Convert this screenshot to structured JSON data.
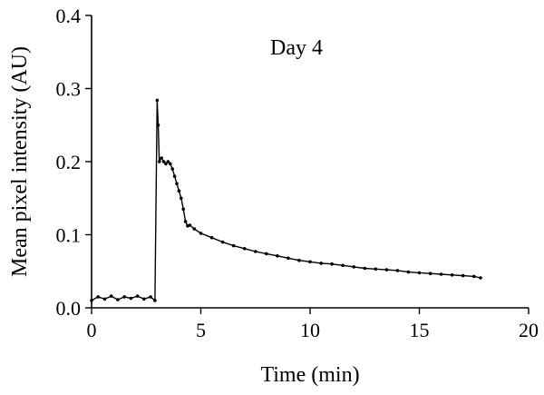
{
  "chart_data": {
    "type": "line",
    "title": "",
    "annotation": "Day 4",
    "xlabel": "Time (min)",
    "ylabel": "Mean pixel intensity (AU)",
    "xlim": [
      0,
      20
    ],
    "ylim": [
      0,
      0.4
    ],
    "x_ticks": [
      0,
      5,
      10,
      15,
      20
    ],
    "x_tick_labels": [
      "0",
      "5",
      "10",
      "15",
      "20"
    ],
    "y_ticks": [
      0.0,
      0.1,
      0.2,
      0.3,
      0.4
    ],
    "y_tick_labels": [
      "0.0",
      "0.1",
      "0.2",
      "0.3",
      "0.4"
    ],
    "grid": false,
    "series": [
      {
        "x": [
          0.0,
          0.3,
          0.6,
          0.9,
          1.2,
          1.5,
          1.8,
          2.1,
          2.4,
          2.7,
          2.9,
          3.0,
          3.05,
          3.1,
          3.2,
          3.3,
          3.4,
          3.5,
          3.6,
          3.7,
          3.8,
          3.9,
          4.0,
          4.1,
          4.2,
          4.3,
          4.4,
          4.5,
          4.7,
          5.0,
          5.5,
          6.0,
          6.5,
          7.0,
          7.5,
          8.0,
          8.5,
          9.0,
          9.5,
          10.0,
          10.5,
          11.0,
          11.5,
          12.0,
          12.5,
          13.0,
          13.5,
          14.0,
          14.5,
          15.0,
          15.5,
          16.0,
          16.5,
          17.0,
          17.5,
          17.8
        ],
        "y": [
          0.01,
          0.015,
          0.012,
          0.016,
          0.011,
          0.015,
          0.013,
          0.016,
          0.012,
          0.015,
          0.01,
          0.284,
          0.25,
          0.2,
          0.205,
          0.2,
          0.197,
          0.2,
          0.197,
          0.19,
          0.18,
          0.17,
          0.16,
          0.15,
          0.135,
          0.118,
          0.112,
          0.113,
          0.108,
          0.102,
          0.096,
          0.09,
          0.085,
          0.081,
          0.077,
          0.074,
          0.071,
          0.068,
          0.065,
          0.063,
          0.061,
          0.06,
          0.058,
          0.056,
          0.054,
          0.053,
          0.052,
          0.051,
          0.049,
          0.048,
          0.047,
          0.046,
          0.045,
          0.044,
          0.043,
          0.041
        ]
      }
    ]
  }
}
